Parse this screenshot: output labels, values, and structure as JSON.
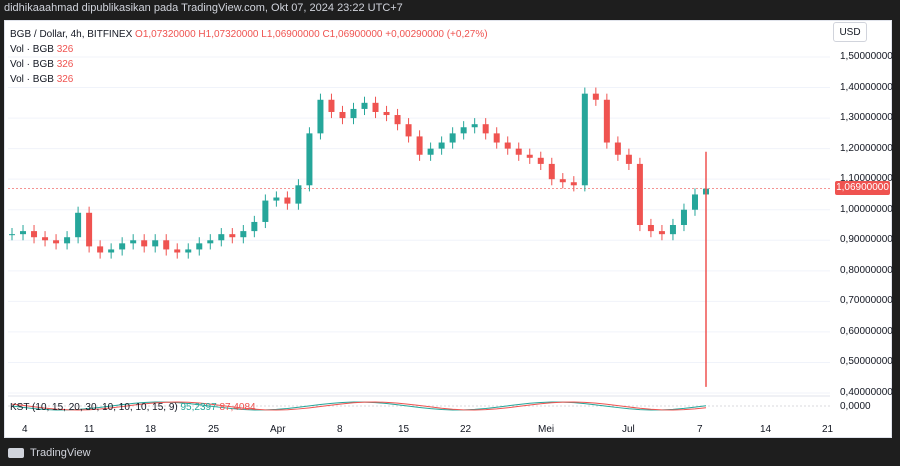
{
  "header": {
    "attribution": "didhikaaahmad dipublikasikan pada TradingView.com, Okt 07, 2024 23:22 UTC+7"
  },
  "legend": {
    "symbol": "BGB / Dollar, 4h, BITFINEX",
    "ohlc": "O1,07320000  H1,07320000  L1,06900000  C1,06900000  +0,00290000 (+0,27%)",
    "vol_rows": [
      {
        "label": "Vol · BGB",
        "value": "326"
      },
      {
        "label": "Vol · BGB",
        "value": "326"
      },
      {
        "label": "Vol · BGB",
        "value": "326"
      }
    ]
  },
  "currency_button": "USD",
  "last_price_tag": "1,06900000",
  "kst": {
    "label": "KST (10, 15, 20, 30, 10, 10, 10, 15, 9)",
    "value1": "95,2397",
    "value2": "87,4084",
    "zero_label": "0,0000"
  },
  "footer": {
    "brand": "TradingView"
  },
  "colors": {
    "up": "#26a69a",
    "down": "#ef5350",
    "background": "#ffffff",
    "grid": "#f0f3fa"
  },
  "chart_data": {
    "type": "candlestick",
    "y_axis_labels": [
      "1,50000000",
      "1,40000000",
      "1,30000000",
      "1,20000000",
      "1,10000000",
      "1,00000000",
      "0,90000000",
      "0,80000000",
      "0,70000000",
      "0,60000000",
      "0,50000000",
      "0,40000000"
    ],
    "x_axis_labels": [
      "4",
      "11",
      "18",
      "25",
      "Apr",
      "8",
      "15",
      "22",
      "Mei",
      "Jul",
      "7",
      "14",
      "21"
    ],
    "ylim": [
      0.4,
      1.5
    ],
    "last_price": 1.069,
    "ohlc_points": [
      [
        0,
        0.92
      ],
      [
        1,
        0.93
      ],
      [
        2,
        0.91
      ],
      [
        3,
        0.9
      ],
      [
        4,
        0.89
      ],
      [
        5,
        0.91
      ],
      [
        6,
        0.99
      ],
      [
        7,
        0.88
      ],
      [
        8,
        0.86
      ],
      [
        9,
        0.87
      ],
      [
        10,
        0.89
      ],
      [
        11,
        0.9
      ],
      [
        12,
        0.88
      ],
      [
        13,
        0.9
      ],
      [
        14,
        0.87
      ],
      [
        15,
        0.86
      ],
      [
        16,
        0.87
      ],
      [
        17,
        0.89
      ],
      [
        18,
        0.9
      ],
      [
        19,
        0.92
      ],
      [
        20,
        0.91
      ],
      [
        21,
        0.93
      ],
      [
        22,
        0.96
      ],
      [
        23,
        1.03
      ],
      [
        24,
        1.04
      ],
      [
        25,
        1.02
      ],
      [
        26,
        1.08
      ],
      [
        27,
        1.25
      ],
      [
        28,
        1.36
      ],
      [
        29,
        1.32
      ],
      [
        30,
        1.3
      ],
      [
        31,
        1.33
      ],
      [
        32,
        1.35
      ],
      [
        33,
        1.32
      ],
      [
        34,
        1.31
      ],
      [
        35,
        1.28
      ],
      [
        36,
        1.24
      ],
      [
        37,
        1.18
      ],
      [
        38,
        1.2
      ],
      [
        39,
        1.22
      ],
      [
        40,
        1.25
      ],
      [
        41,
        1.27
      ],
      [
        42,
        1.28
      ],
      [
        43,
        1.25
      ],
      [
        44,
        1.22
      ],
      [
        45,
        1.2
      ],
      [
        46,
        1.18
      ],
      [
        47,
        1.17
      ],
      [
        48,
        1.15
      ],
      [
        49,
        1.1
      ],
      [
        50,
        1.09
      ],
      [
        51,
        1.08
      ],
      [
        52,
        1.38
      ],
      [
        53,
        1.36
      ],
      [
        54,
        1.22
      ],
      [
        55,
        1.18
      ],
      [
        56,
        1.15
      ],
      [
        57,
        0.95
      ],
      [
        58,
        0.93
      ],
      [
        59,
        0.92
      ],
      [
        60,
        0.95
      ],
      [
        61,
        1.0
      ],
      [
        62,
        1.05
      ],
      [
        63,
        1.069
      ]
    ],
    "spike": {
      "x": 63,
      "high": 1.19,
      "low": 0.42
    }
  }
}
